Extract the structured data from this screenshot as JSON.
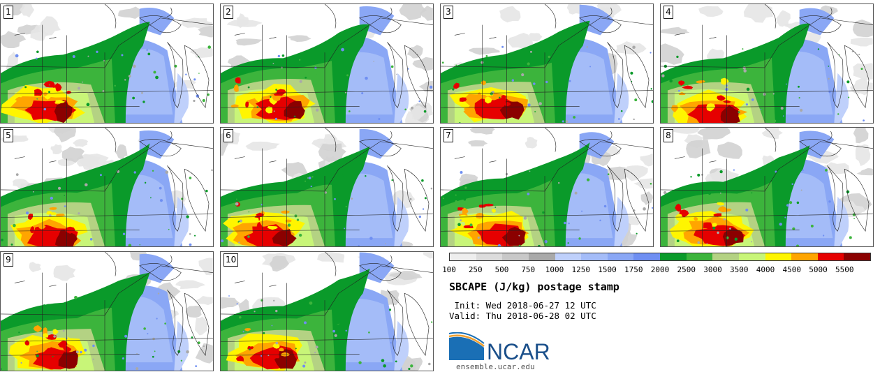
{
  "panels": [
    {
      "label": "1"
    },
    {
      "label": "2"
    },
    {
      "label": "3"
    },
    {
      "label": "4"
    },
    {
      "label": "5"
    },
    {
      "label": "6"
    },
    {
      "label": "7"
    },
    {
      "label": "8"
    },
    {
      "label": "9"
    },
    {
      "label": "10"
    }
  ],
  "colorbar": {
    "ticks": [
      "100",
      "250",
      "500",
      "750",
      "1000",
      "1250",
      "1500",
      "1750",
      "2000",
      "2500",
      "3000",
      "3500",
      "4000",
      "4500",
      "5000",
      "5500"
    ],
    "colors": [
      "#eeeeee",
      "#dcdcdc",
      "#c8c8c8",
      "#a9a9a9",
      "#bfd0fb",
      "#a4bcf8",
      "#8aa7f5",
      "#6f8ff2",
      "#0a9a2a",
      "#3cb43c",
      "#b4d283",
      "#c8f578",
      "#fff500",
      "#ffa500",
      "#e60000",
      "#8b0000"
    ]
  },
  "title": "SBCAPE (J/kg) postage stamp",
  "init": " Init: Wed 2018-06-27 12 UTC",
  "valid": "Valid: Thu 2018-06-28 02 UTC",
  "logo": {
    "text": "NCAR"
  },
  "website": "ensemble.ucar.edu"
}
